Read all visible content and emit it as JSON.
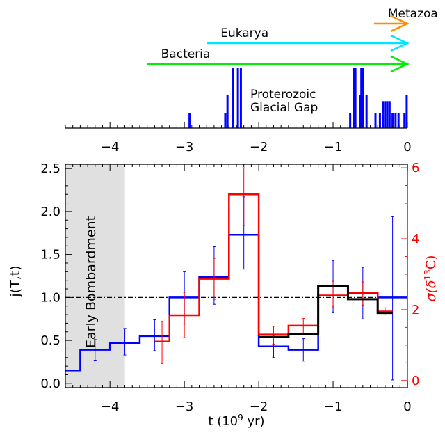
{
  "chart_data": [
    {
      "type": "bar",
      "panel": "top",
      "xlim": [
        -4.6,
        0
      ],
      "x_ticks": [
        -4,
        -3,
        -2,
        -1,
        0
      ],
      "x_tick_labels": [
        "−4",
        "−3",
        "−2",
        "−1",
        "0"
      ],
      "bar_color": "#0000ff",
      "bars": [
        {
          "x": -2.93,
          "h": 0.25
        },
        {
          "x": -2.45,
          "h": 0.25
        },
        {
          "x": -2.42,
          "h": 0.55
        },
        {
          "x": -2.35,
          "h": 1.0
        },
        {
          "x": -2.28,
          "h": 1.0
        },
        {
          "x": -2.24,
          "h": 1.0
        },
        {
          "x": -0.77,
          "h": 0.25
        },
        {
          "x": -0.72,
          "h": 1.0
        },
        {
          "x": -0.7,
          "h": 1.0
        },
        {
          "x": -0.64,
          "h": 0.55
        },
        {
          "x": -0.62,
          "h": 1.0
        },
        {
          "x": -0.6,
          "h": 1.0
        },
        {
          "x": -0.55,
          "h": 0.55
        },
        {
          "x": -0.43,
          "h": 0.25
        },
        {
          "x": -0.37,
          "h": 0.25
        },
        {
          "x": -0.33,
          "h": 0.45
        },
        {
          "x": -0.3,
          "h": 0.45
        },
        {
          "x": -0.27,
          "h": 0.45
        },
        {
          "x": -0.24,
          "h": 0.45
        },
        {
          "x": -0.2,
          "h": 0.25
        },
        {
          "x": -0.16,
          "h": 0.25
        },
        {
          "x": -0.12,
          "h": 0.25
        },
        {
          "x": -0.04,
          "h": 0.25
        },
        {
          "x": -0.01,
          "h": 0.55
        }
      ],
      "annotation": [
        "Proterozoic",
        "Glacial Gap"
      ],
      "arrows": [
        {
          "label": "Metazoa",
          "start": -0.45,
          "end": 0,
          "color": "#ff8c00"
        },
        {
          "label": "Eukarya",
          "start": -2.7,
          "end": 0,
          "color": "#00e5ff"
        },
        {
          "label": "Bacteria",
          "start": -3.5,
          "end": 0,
          "color": "#00ee00"
        }
      ]
    },
    {
      "type": "line",
      "panel": "bottom",
      "xlabel_parts": [
        "t (10",
        "9",
        " yr)"
      ],
      "ylabel": "j(T,t)",
      "y2label_parts": [
        "σ(δ",
        "13",
        "C)"
      ],
      "xlim": [
        -4.6,
        0
      ],
      "ylim": [
        -0.05,
        2.55
      ],
      "y2lim": [
        -0.2,
        6.1
      ],
      "x_ticks": [
        -4,
        -3,
        -2,
        -1,
        0
      ],
      "x_tick_labels": [
        "−4",
        "−3",
        "−2",
        "−1",
        "0"
      ],
      "y_ticks": [
        0.0,
        0.5,
        1.0,
        1.5,
        2.0,
        2.5
      ],
      "y_tick_labels": [
        "0.0",
        "0.5",
        "1.0",
        "1.5",
        "2.0",
        "2.5"
      ],
      "y2_ticks": [
        0,
        2,
        4,
        6
      ],
      "y2_tick_labels": [
        "0",
        "2",
        "4",
        "6"
      ],
      "reference_line_y": 1.0,
      "shaded_region": {
        "x0": -4.6,
        "x1": -3.8,
        "label": "Early Bombardment",
        "color": "#e0e0e0"
      },
      "colors": {
        "blue": "#0000ff",
        "red": "#ff0000",
        "black": "#000000",
        "right_axis": "#ff0000"
      },
      "series": [
        {
          "color": "blue",
          "axis": "left",
          "edges": [
            -4.6,
            -4.4,
            -4.0,
            -3.6,
            -3.2,
            -2.8,
            -2.4,
            -2.0,
            -1.6,
            -1.2,
            -0.8,
            -0.4,
            -0.0
          ],
          "values": [
            0.15,
            0.39,
            0.47,
            0.55,
            1.0,
            1.24,
            1.73,
            0.43,
            0.39,
            1.13,
            1.05,
            1.0
          ],
          "err_x": [
            -4.2,
            -3.8,
            -3.4,
            -3.0,
            -2.6,
            -2.2,
            -1.8,
            -1.4,
            -1.0,
            -0.6,
            -0.2
          ],
          "err_y": [
            0.39,
            0.47,
            0.55,
            1.0,
            1.24,
            1.73,
            0.43,
            0.39,
            1.13,
            1.05,
            1.0
          ],
          "err_lo": [
            0.12,
            0.14,
            0.17,
            0.31,
            0.32,
            0.4,
            0.13,
            0.13,
            0.3,
            0.3,
            0.96
          ],
          "err_hi": [
            0.12,
            0.17,
            0.19,
            0.3,
            0.35,
            0.44,
            0.13,
            0.13,
            0.3,
            0.3,
            0.94
          ]
        },
        {
          "color": "red",
          "axis": "right",
          "edges": [
            -3.4,
            -3.2,
            -2.8,
            -2.4,
            -2.0,
            -1.6,
            -1.2,
            -0.8,
            -0.4,
            -0.2
          ],
          "values": [
            1.1,
            1.84,
            2.87,
            5.25,
            1.3,
            1.55,
            2.4,
            2.48,
            1.95
          ],
          "err_x": [
            -3.3,
            -3.0,
            -2.6,
            -2.2,
            -1.8,
            -1.4,
            -1.0,
            -0.6,
            -0.3
          ],
          "err_y": [
            1.1,
            1.84,
            2.87,
            5.25,
            1.3,
            1.55,
            2.4,
            2.48,
            1.95
          ],
          "err_lo": [
            0.62,
            0.63,
            0.58,
            0.88,
            0.27,
            0.22,
            0.32,
            0.35,
            0.1
          ],
          "err_hi": [
            0.57,
            0.65,
            0.58,
            0.75,
            0.23,
            0.2,
            0.4,
            0.3,
            0.1
          ]
        },
        {
          "color": "black",
          "axis": "left",
          "edges": [
            -2.0,
            -1.6,
            -1.2,
            -0.8,
            -0.4,
            -0.2
          ],
          "values": [
            0.54,
            0.57,
            1.13,
            0.98,
            0.82
          ],
          "err_x": [],
          "err_y": [],
          "err_lo": [],
          "err_hi": []
        }
      ]
    }
  ]
}
